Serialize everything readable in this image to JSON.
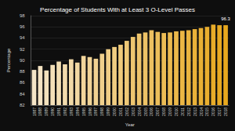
{
  "chart_data": {
    "type": "bar",
    "title": "Percentage of Students With at Least 3 O-Level Passes",
    "x_label": "Year",
    "y_label": "Percentage",
    "categories": [
      "1987",
      "1988",
      "1989",
      "1990",
      "1991",
      "1992",
      "1993",
      "1994",
      "1995",
      "1996",
      "1997",
      "1998",
      "1999",
      "2000",
      "2001",
      "2002",
      "2003",
      "2004",
      "2005",
      "2006",
      "2007",
      "2008",
      "2009",
      "2010",
      "2011",
      "2012",
      "2013",
      "2014",
      "2015",
      "2016",
      "2017",
      "2018"
    ],
    "values": [
      88.3,
      89.0,
      88.2,
      89.2,
      89.8,
      89.3,
      90.2,
      89.6,
      90.8,
      90.6,
      90.3,
      91.2,
      92.0,
      92.4,
      92.8,
      93.5,
      94.2,
      94.8,
      95.0,
      95.4,
      95.1,
      94.9,
      95.0,
      95.2,
      95.3,
      95.4,
      95.6,
      95.8,
      96.0,
      96.4,
      96.3,
      96.3
    ],
    "value_labels": [
      null,
      null,
      null,
      null,
      null,
      null,
      null,
      null,
      null,
      null,
      null,
      null,
      null,
      null,
      null,
      null,
      null,
      null,
      null,
      null,
      null,
      null,
      null,
      null,
      null,
      null,
      null,
      null,
      null,
      null,
      null,
      "96.3"
    ],
    "data_labels": true,
    "colors": [
      "#f5e6c8",
      "#f5e4c3",
      "#f4e2bd",
      "#f4e0b8",
      "#f3deb2",
      "#f3dcad",
      "#f2daa7",
      "#f2d8a2",
      "#f2d69c",
      "#f1d497",
      "#f1d291",
      "#f0d08c",
      "#f0ce86",
      "#efcc81",
      "#efca7b",
      "#eec876",
      "#eec670",
      "#eec46b",
      "#edc265",
      "#edc060",
      "#ecbe5a",
      "#ecbc55",
      "#ebba4f",
      "#ebb84a",
      "#ebb644",
      "#eab43f",
      "#eab239",
      "#e9b034",
      "#e9ae2e",
      "#e8ac29",
      "#e8aa23",
      "#e8a81e"
    ],
    "ylim": [
      82,
      98
    ],
    "yticks": [
      82,
      84,
      86,
      88,
      90,
      92,
      94,
      96,
      98
    ],
    "grid": true
  }
}
